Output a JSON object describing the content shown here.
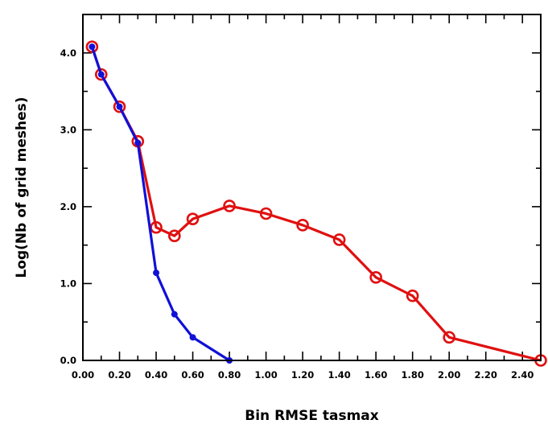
{
  "chart_data": {
    "type": "line",
    "title": "",
    "xlabel": "Bin RMSE tasmax",
    "ylabel": "Log(Nb of grid meshes)",
    "xlim": [
      0.0,
      2.5
    ],
    "ylim": [
      0.0,
      4.5
    ],
    "x_ticks": [
      "0.00",
      "0.20",
      "0.40",
      "0.60",
      "0.80",
      "1.00",
      "1.20",
      "1.40",
      "1.60",
      "1.80",
      "2.00",
      "2.20",
      "2.40"
    ],
    "y_ticks": [
      "0.0",
      "1.0",
      "2.0",
      "3.0",
      "4.0"
    ],
    "grid": false,
    "series": [
      {
        "color": "#e01010",
        "marker": "open-circle",
        "x": [
          0.05,
          0.1,
          0.2,
          0.3,
          0.4,
          0.5,
          0.6,
          0.8,
          1.0,
          1.2,
          1.4,
          1.6,
          1.8,
          2.0,
          2.5
        ],
        "y": [
          4.08,
          3.72,
          3.3,
          2.85,
          1.73,
          1.62,
          1.84,
          2.01,
          1.91,
          1.76,
          1.57,
          1.08,
          0.84,
          0.3,
          0.0
        ]
      },
      {
        "color": "#1010d8",
        "marker": "filled-dot",
        "x": [
          0.05,
          0.1,
          0.2,
          0.3,
          0.4,
          0.5,
          0.6,
          0.8
        ],
        "y": [
          4.08,
          3.72,
          3.3,
          2.83,
          1.14,
          0.6,
          0.3,
          0.0
        ]
      }
    ]
  }
}
